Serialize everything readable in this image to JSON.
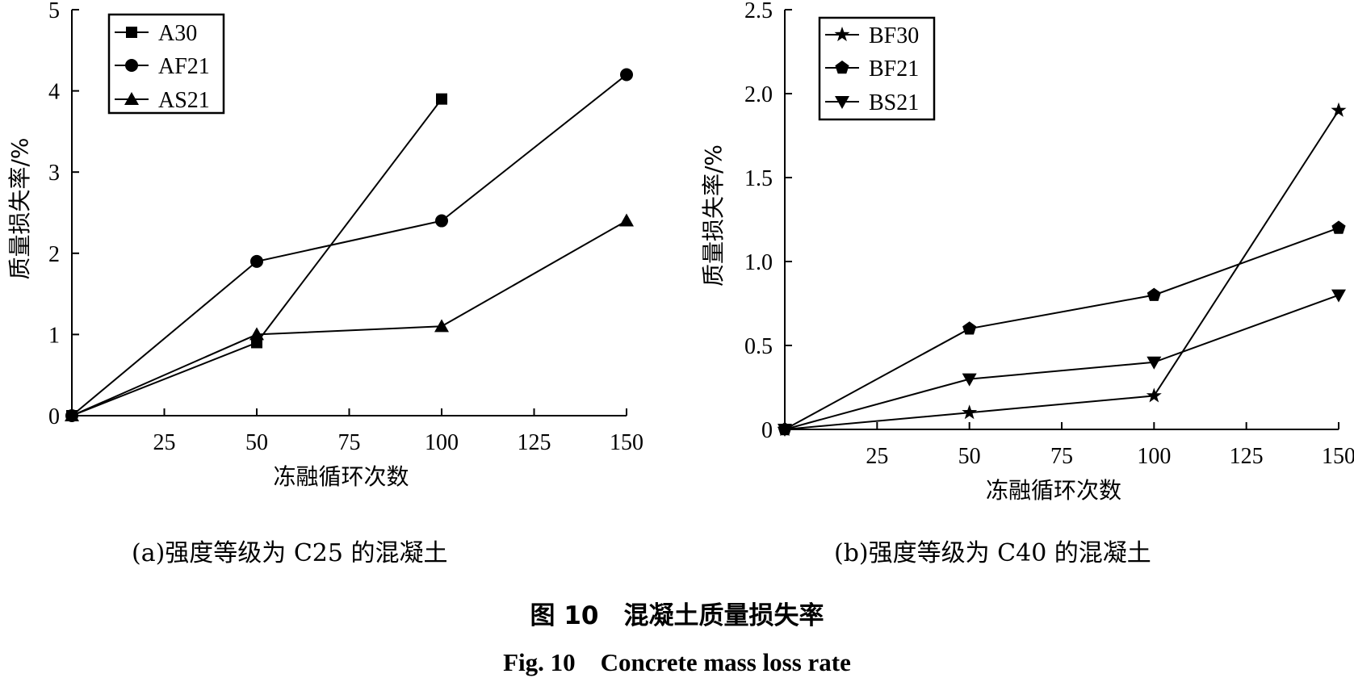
{
  "chart_data": [
    {
      "type": "line",
      "panel": "a",
      "caption": "(a)强度等级为 C25 的混凝土",
      "xlabel": "冻融循环次数",
      "ylabel": "质量损失率/%",
      "xlim": [
        0,
        150
      ],
      "ylim": [
        0,
        5
      ],
      "xticks": [
        25,
        50,
        75,
        100,
        125,
        150
      ],
      "yticks": [
        0,
        1,
        2,
        3,
        4,
        5
      ],
      "grid": false,
      "legend_position": "top-left",
      "series": [
        {
          "name": "A30",
          "marker": "square",
          "x": [
            0,
            50,
            100
          ],
          "y": [
            0,
            0.9,
            3.9
          ]
        },
        {
          "name": "AF21",
          "marker": "circle",
          "x": [
            0,
            50,
            100,
            150
          ],
          "y": [
            0,
            1.9,
            2.4,
            4.2
          ]
        },
        {
          "name": "AS21",
          "marker": "triangle-up",
          "x": [
            0,
            50,
            100,
            150
          ],
          "y": [
            0,
            1.0,
            1.1,
            2.4
          ]
        }
      ]
    },
    {
      "type": "line",
      "panel": "b",
      "caption": "(b)强度等级为 C40 的混凝土",
      "xlabel": "冻融循环次数",
      "ylabel": "质量损失率/%",
      "xlim": [
        0,
        150
      ],
      "ylim": [
        0,
        2.5
      ],
      "xticks": [
        25,
        50,
        75,
        100,
        125,
        150
      ],
      "yticks": [
        0,
        0.5,
        1.0,
        1.5,
        2.0,
        2.5
      ],
      "ytick_labels": [
        "0",
        "0.5",
        "1.0",
        "1.5",
        "2.0",
        "2.5"
      ],
      "grid": false,
      "legend_position": "top-left",
      "series": [
        {
          "name": "BF30",
          "marker": "star",
          "x": [
            0,
            50,
            100,
            150
          ],
          "y": [
            0,
            0.1,
            0.2,
            1.9
          ]
        },
        {
          "name": "BF21",
          "marker": "pentagon",
          "x": [
            0,
            50,
            100,
            150
          ],
          "y": [
            0,
            0.6,
            0.8,
            1.2
          ]
        },
        {
          "name": "BS21",
          "marker": "triangle-down",
          "x": [
            0,
            50,
            100,
            150
          ],
          "y": [
            0,
            0.3,
            0.4,
            0.8
          ]
        }
      ]
    }
  ],
  "figure": {
    "caption_cn": "图 10　混凝土质量损失率",
    "caption_en": "Fig. 10　Concrete mass loss rate"
  }
}
